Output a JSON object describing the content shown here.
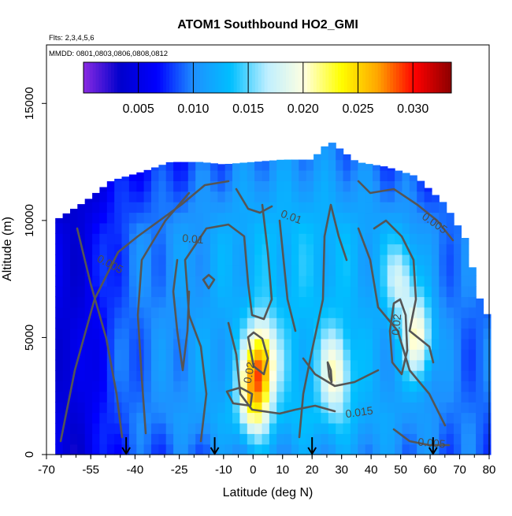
{
  "chart_data": {
    "type": "heatmap",
    "title": "ATOM1 Southbound HO2_GMI",
    "subtitle_flights": "Flts: 2,3,4,5,6",
    "subtitle_dates": "MMDD: 0801,0803,0806,0808,0812",
    "xlabel": "Latitude (deg N)",
    "ylabel": "Altitude (m)",
    "xlim": [
      -70,
      80
    ],
    "ylim": [
      0,
      17500
    ],
    "xticks": [
      "-70",
      "-55",
      "-40",
      "-25",
      "-10",
      "0",
      "10",
      "20",
      "30",
      "40",
      "50",
      "60",
      "70",
      "80"
    ],
    "xtick_values": [
      -70,
      -55,
      -40,
      -25,
      -10,
      0,
      10,
      20,
      30,
      40,
      50,
      60,
      70,
      80
    ],
    "yticks": [
      "0",
      "5000",
      "10000",
      "15000"
    ],
    "ytick_values": [
      0,
      5000,
      10000,
      15000
    ],
    "colorbar": {
      "range": [
        0,
        0.0335
      ],
      "ticks": [
        "0.005",
        "0.010",
        "0.015",
        "0.020",
        "0.025",
        "0.030"
      ],
      "tick_values": [
        0.005,
        0.01,
        0.015,
        0.02,
        0.025,
        0.03
      ],
      "colors": [
        "#8a2be2",
        "#0000cd",
        "#0000ff",
        "#1e90ff",
        "#00bfff",
        "#bfefff",
        "#ffffe0",
        "#ffff00",
        "#ffa500",
        "#ff0000",
        "#8b0000"
      ]
    },
    "contour_labels": [
      "0.005",
      "0.01",
      "0.01",
      "0.005",
      "0.02",
      "0.02",
      "0.015",
      "0.005"
    ],
    "flight_markers_lat": [
      -43,
      -13,
      20,
      61
    ],
    "data_extent_lat": [
      -67,
      80
    ],
    "data_top_altitude_m": [
      [
        -67,
        10000
      ],
      [
        -57,
        10800
      ],
      [
        -48,
        11700
      ],
      [
        -37,
        12100
      ],
      [
        -28,
        12500
      ],
      [
        -18,
        12500
      ],
      [
        -10,
        12400
      ],
      [
        0,
        12500
      ],
      [
        10,
        12600
      ],
      [
        20,
        12600
      ],
      [
        26,
        13400
      ],
      [
        35,
        12500
      ],
      [
        45,
        12300
      ],
      [
        55,
        11900
      ],
      [
        65,
        10700
      ],
      [
        72,
        9200
      ],
      [
        78,
        6000
      ],
      [
        80,
        6000
      ]
    ],
    "hotspots": [
      {
        "lat": 3,
        "alt": 4000,
        "value": 0.024
      },
      {
        "lat": 0,
        "alt": 2500,
        "value": 0.022
      },
      {
        "lat": 56,
        "alt": 5000,
        "value": 0.022
      },
      {
        "lat": 50,
        "alt": 7500,
        "value": 0.019
      },
      {
        "lat": 28,
        "alt": 3500,
        "value": 0.02
      }
    ]
  }
}
